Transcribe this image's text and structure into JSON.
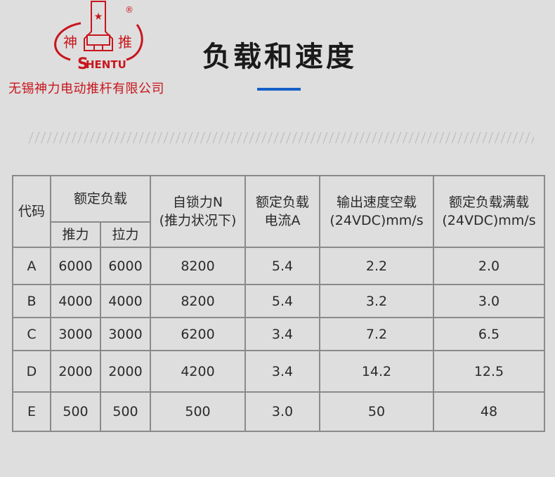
{
  "brand": {
    "logo_text_left": "神",
    "logo_text_right": "推",
    "logo_wordmark": "HENTU",
    "logo_initial": "S",
    "registered": "®",
    "company_name": "无锡神力电动推杆有限公司",
    "color": "#c8161d"
  },
  "page_title": "负载和速度",
  "accent_color": "#1660c8",
  "table": {
    "headers": {
      "code": "代码",
      "rated_load": "额定负载",
      "push": "推力",
      "pull": "拉力",
      "self_lock_1": "自锁力N",
      "self_lock_2": "(推力状况下)",
      "current_1": "额定负载",
      "current_2": "电流A",
      "speed_noload_1": "输出速度空载",
      "speed_noload_2": "(24VDC)mm/s",
      "speed_full_1": "额定负载满载",
      "speed_full_2": "(24VDC)mm/s"
    },
    "rows": [
      [
        "A",
        "6000",
        "6000",
        "8200",
        "5.4",
        "2.2",
        "2.0"
      ],
      [
        "B",
        "4000",
        "4000",
        "8200",
        "5.4",
        "3.2",
        "3.0"
      ],
      [
        "C",
        "3000",
        "3000",
        "6200",
        "3.4",
        "7.2",
        "6.5"
      ],
      [
        "D",
        "2000",
        "2000",
        "4200",
        "3.4",
        "14.2",
        "12.5"
      ],
      [
        "E",
        "500",
        "500",
        "500",
        "3.0",
        "50",
        "48"
      ]
    ]
  }
}
